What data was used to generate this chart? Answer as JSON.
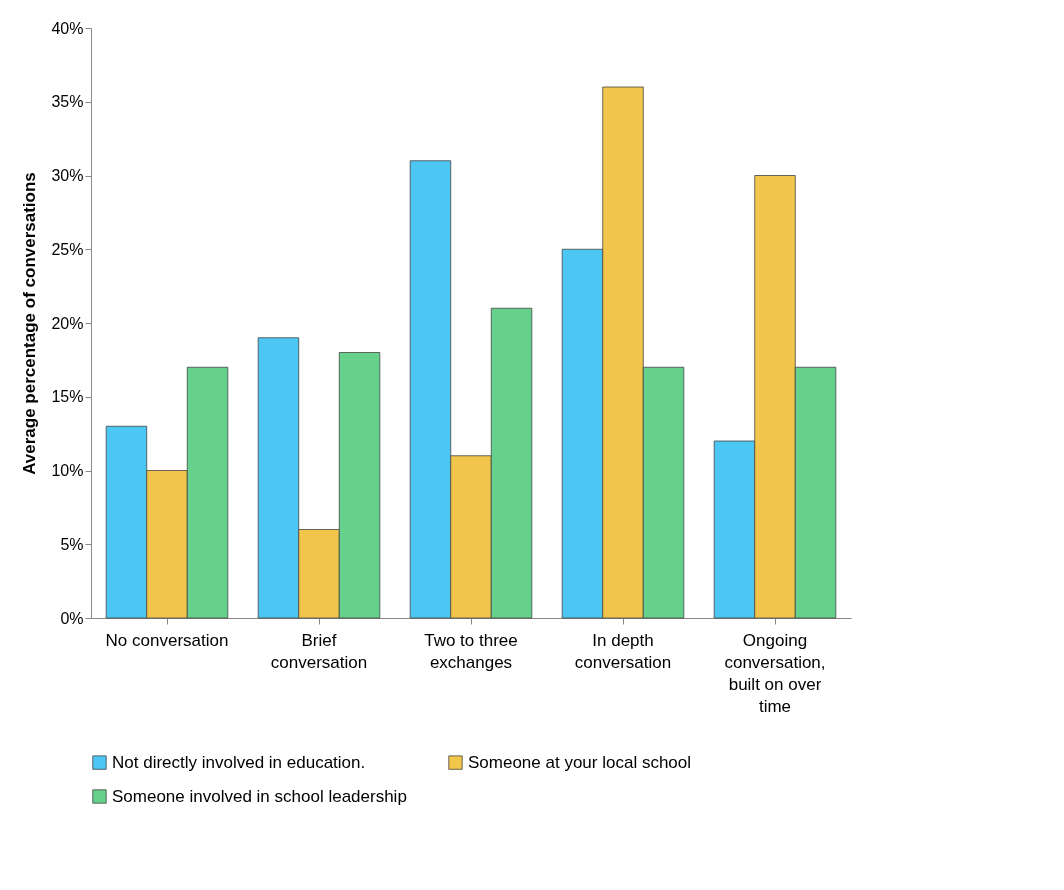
{
  "chart_data": {
    "type": "bar",
    "ylabel": "Average percentage of conversations",
    "categories": [
      "No conversation",
      "Brief conversation",
      "Two to three exchanges",
      "In depth conversation",
      "Ongoing conversation, built on over time"
    ],
    "series": [
      {
        "name": "Not directly involved in education.",
        "color": "#4cc6f3",
        "values": [
          13,
          19,
          31,
          25,
          12
        ]
      },
      {
        "name": "Someone at your local school",
        "color": "#f2c54b",
        "values": [
          10,
          6,
          11,
          36,
          30
        ]
      },
      {
        "name": "Someone involved in school leadership",
        "color": "#66d18a",
        "values": [
          17,
          18,
          21,
          17,
          17
        ]
      }
    ],
    "ylim": [
      0,
      40
    ],
    "yticks": [
      {
        "value": 0,
        "label": "0%"
      },
      {
        "value": 5,
        "label": "5%"
      },
      {
        "value": 10,
        "label": "10%"
      },
      {
        "value": 15,
        "label": "15%"
      },
      {
        "value": 20,
        "label": "20%"
      },
      {
        "value": 25,
        "label": "25%"
      },
      {
        "value": 30,
        "label": "30%"
      },
      {
        "value": 35,
        "label": "35%"
      },
      {
        "value": 40,
        "label": "40%"
      }
    ],
    "grid": false,
    "legend": "bottom"
  }
}
